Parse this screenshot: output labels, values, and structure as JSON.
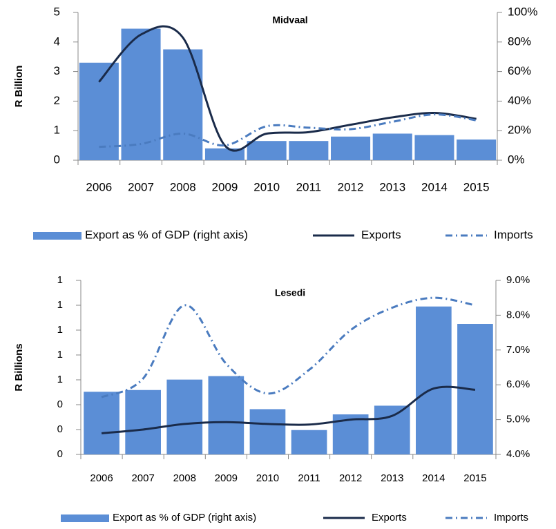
{
  "chart_data": [
    {
      "type": "bar-line",
      "title": "Midvaal",
      "y_label": "R Billion",
      "categories": [
        "2006",
        "2007",
        "2008",
        "2009",
        "2010",
        "2011",
        "2012",
        "2013",
        "2014",
        "2015"
      ],
      "series": [
        {
          "name": "Export as % of GDP (right axis)",
          "type": "bar",
          "axis": "y2",
          "color": "#5b8ed6",
          "values": [
            66,
            89,
            75,
            8,
            13,
            13,
            16,
            18,
            17,
            14
          ]
        },
        {
          "name": "Exports",
          "type": "line",
          "axis": "y",
          "color": "#1a2b4a",
          "dash": "solid",
          "values": [
            2.65,
            4.25,
            4.15,
            0.5,
            0.9,
            0.95,
            1.2,
            1.45,
            1.6,
            1.4
          ]
        },
        {
          "name": "Imports",
          "type": "line",
          "axis": "y",
          "color": "#4a7bbf",
          "dash": "dash-dot",
          "values": [
            0.45,
            0.55,
            0.9,
            0.5,
            1.15,
            1.1,
            1.05,
            1.3,
            1.55,
            1.35
          ]
        }
      ],
      "ylim": [
        0,
        5
      ],
      "yticks": [
        0,
        1,
        2,
        3,
        4,
        5
      ],
      "y2lim": [
        0,
        100
      ],
      "y2ticks": [
        {
          "value": 0,
          "label": "0%"
        },
        {
          "value": 20,
          "label": "20%"
        },
        {
          "value": 40,
          "label": "40%"
        },
        {
          "value": 60,
          "label": "60%"
        },
        {
          "value": 80,
          "label": "80%"
        },
        {
          "value": 100,
          "label": "100%"
        }
      ],
      "legend": "bottom"
    },
    {
      "type": "bar-line",
      "title": "Lesedi",
      "y_label": "R Billions",
      "categories": [
        "2006",
        "2007",
        "2008",
        "2009",
        "2010",
        "2011",
        "2012",
        "2013",
        "2014",
        "2015"
      ],
      "series": [
        {
          "name": "Export as % of GDP (right axis)",
          "type": "bar",
          "axis": "y2",
          "color": "#5b8ed6",
          "values": [
            5.8,
            5.85,
            6.15,
            6.25,
            5.3,
            4.7,
            5.15,
            5.4,
            8.25,
            7.75
          ]
        },
        {
          "name": "Exports",
          "type": "line",
          "axis": "y",
          "color": "#1a2b4a",
          "dash": "solid",
          "values": [
            0.17,
            0.2,
            0.245,
            0.26,
            0.245,
            0.24,
            0.28,
            0.31,
            0.53,
            0.52
          ]
        },
        {
          "name": "Imports",
          "type": "line",
          "axis": "y",
          "color": "#4a7bbf",
          "dash": "dash-dot",
          "values": [
            0.46,
            0.61,
            1.2,
            0.73,
            0.49,
            0.68,
            1.0,
            1.18,
            1.26,
            1.2
          ]
        }
      ],
      "ylim": [
        0,
        1.4
      ],
      "yticks": [
        {
          "value": 0,
          "label": "0"
        },
        {
          "value": 0.2,
          "label": "0"
        },
        {
          "value": 0.4,
          "label": "0"
        },
        {
          "value": 0.6,
          "label": "1"
        },
        {
          "value": 0.8,
          "label": "1"
        },
        {
          "value": 1.0,
          "label": "1"
        },
        {
          "value": 1.2,
          "label": "1"
        },
        {
          "value": 1.4,
          "label": "1"
        }
      ],
      "y2lim": [
        4,
        9
      ],
      "y2ticks": [
        {
          "value": 4,
          "label": "4.0%"
        },
        {
          "value": 5,
          "label": "5.0%"
        },
        {
          "value": 6,
          "label": "6.0%"
        },
        {
          "value": 7,
          "label": "7.0%"
        },
        {
          "value": 8,
          "label": "8.0%"
        },
        {
          "value": 9,
          "label": "9.0%"
        }
      ],
      "legend": "bottom"
    }
  ]
}
